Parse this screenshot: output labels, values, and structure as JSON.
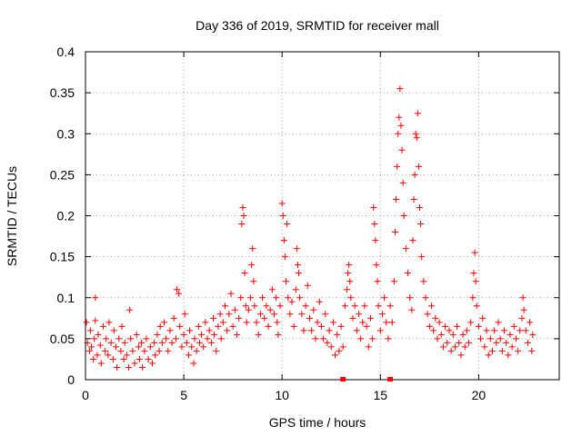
{
  "chart_data": {
    "type": "scatter",
    "title": "Day 336 of 2019, SRMTID for receiver mall",
    "xlabel": "GPS time / hours",
    "ylabel": "SRMTID / TECUs",
    "xlim": [
      0,
      24.1
    ],
    "ylim": [
      0,
      0.4
    ],
    "grid": true,
    "marker": "+",
    "marker_color": "#ff0000",
    "x_ticks": [
      {
        "value": 0,
        "label": "0"
      },
      {
        "value": 5,
        "label": "5"
      },
      {
        "value": 10,
        "label": "10"
      },
      {
        "value": 15,
        "label": "15"
      },
      {
        "value": 20,
        "label": "20"
      }
    ],
    "y_ticks": [
      {
        "value": 0,
        "label": "0"
      },
      {
        "value": 0.05,
        "label": "0.05"
      },
      {
        "value": 0.1,
        "label": "0.1"
      },
      {
        "value": 0.15,
        "label": "0.15"
      },
      {
        "value": 0.2,
        "label": "0.2"
      },
      {
        "value": 0.25,
        "label": "0.25"
      },
      {
        "value": 0.3,
        "label": "0.3"
      },
      {
        "value": 0.35,
        "label": "0.35"
      },
      {
        "value": 0.4,
        "label": "0.4"
      }
    ],
    "gap_markers_x": [
      13.1,
      15.5
    ],
    "series": [
      {
        "name": "SRMTID",
        "points": [
          [
            0.05,
            0.07
          ],
          [
            0.1,
            0.045
          ],
          [
            0.2,
            0.035
          ],
          [
            0.25,
            0.06
          ],
          [
            0.3,
            0.04
          ],
          [
            0.4,
            0.025
          ],
          [
            0.45,
            0.05
          ],
          [
            0.5,
            0.072
          ],
          [
            0.5,
            0.1
          ],
          [
            0.6,
            0.03
          ],
          [
            0.65,
            0.055
          ],
          [
            0.75,
            0.042
          ],
          [
            0.8,
            0.02
          ],
          [
            0.9,
            0.065
          ],
          [
            1.0,
            0.035
          ],
          [
            1.05,
            0.05
          ],
          [
            1.15,
            0.03
          ],
          [
            1.2,
            0.07
          ],
          [
            1.3,
            0.045
          ],
          [
            1.4,
            0.025
          ],
          [
            1.45,
            0.06
          ],
          [
            1.55,
            0.04
          ],
          [
            1.6,
            0.015
          ],
          [
            1.7,
            0.05
          ],
          [
            1.8,
            0.035
          ],
          [
            1.85,
            0.065
          ],
          [
            1.95,
            0.025
          ],
          [
            2.0,
            0.045
          ],
          [
            2.1,
            0.03
          ],
          [
            2.2,
            0.015
          ],
          [
            2.25,
            0.085
          ],
          [
            2.3,
            0.05
          ],
          [
            2.4,
            0.035
          ],
          [
            2.5,
            0.02
          ],
          [
            2.6,
            0.055
          ],
          [
            2.7,
            0.04
          ],
          [
            2.75,
            0.025
          ],
          [
            2.85,
            0.045
          ],
          [
            2.9,
            0.015
          ],
          [
            3.0,
            0.035
          ],
          [
            3.1,
            0.05
          ],
          [
            3.2,
            0.025
          ],
          [
            3.3,
            0.04
          ],
          [
            3.4,
            0.02
          ],
          [
            3.5,
            0.045
          ],
          [
            3.55,
            0.03
          ],
          [
            3.65,
            0.055
          ],
          [
            3.75,
            0.035
          ],
          [
            3.8,
            0.065
          ],
          [
            3.9,
            0.045
          ],
          [
            4.0,
            0.07
          ],
          [
            4.1,
            0.05
          ],
          [
            4.2,
            0.035
          ],
          [
            4.3,
            0.06
          ],
          [
            4.4,
            0.045
          ],
          [
            4.5,
            0.075
          ],
          [
            4.6,
            0.05
          ],
          [
            4.65,
            0.11
          ],
          [
            4.75,
            0.105
          ],
          [
            4.8,
            0.065
          ],
          [
            4.9,
            0.04
          ],
          [
            5.0,
            0.055
          ],
          [
            5.05,
            0.08
          ],
          [
            5.15,
            0.045
          ],
          [
            5.25,
            0.03
          ],
          [
            5.3,
            0.06
          ],
          [
            5.4,
            0.04
          ],
          [
            5.5,
            0.02
          ],
          [
            5.55,
            0.05
          ],
          [
            5.65,
            0.035
          ],
          [
            5.75,
            0.065
          ],
          [
            5.8,
            0.045
          ],
          [
            5.9,
            0.055
          ],
          [
            6.0,
            0.04
          ],
          [
            6.1,
            0.07
          ],
          [
            6.2,
            0.05
          ],
          [
            6.3,
            0.06
          ],
          [
            6.4,
            0.045
          ],
          [
            6.5,
            0.075
          ],
          [
            6.55,
            0.055
          ],
          [
            6.65,
            0.035
          ],
          [
            6.75,
            0.065
          ],
          [
            6.85,
            0.08
          ],
          [
            6.9,
            0.05
          ],
          [
            7.0,
            0.07
          ],
          [
            7.1,
            0.09
          ],
          [
            7.2,
            0.06
          ],
          [
            7.3,
            0.08
          ],
          [
            7.4,
            0.105
          ],
          [
            7.5,
            0.065
          ],
          [
            7.6,
            0.085
          ],
          [
            7.7,
            0.055
          ],
          [
            7.8,
            0.075
          ],
          [
            7.9,
            0.1
          ],
          [
            7.95,
            0.19
          ],
          [
            8.0,
            0.21
          ],
          [
            8.05,
            0.2
          ],
          [
            8.1,
            0.13
          ],
          [
            8.15,
            0.09
          ],
          [
            8.2,
            0.07
          ],
          [
            8.3,
            0.085
          ],
          [
            8.4,
            0.1
          ],
          [
            8.45,
            0.14
          ],
          [
            8.5,
            0.16
          ],
          [
            8.55,
            0.12
          ],
          [
            8.6,
            0.09
          ],
          [
            8.7,
            0.07
          ],
          [
            8.8,
            0.055
          ],
          [
            8.9,
            0.08
          ],
          [
            9.0,
            0.1
          ],
          [
            9.1,
            0.075
          ],
          [
            9.2,
            0.09
          ],
          [
            9.3,
            0.065
          ],
          [
            9.4,
            0.085
          ],
          [
            9.5,
            0.11
          ],
          [
            9.6,
            0.08
          ],
          [
            9.7,
            0.1
          ],
          [
            9.75,
            0.07
          ],
          [
            9.8,
            0.055
          ],
          [
            9.9,
            0.09
          ],
          [
            10.0,
            0.215
          ],
          [
            10.05,
            0.2
          ],
          [
            10.1,
            0.17
          ],
          [
            10.15,
            0.15
          ],
          [
            10.2,
            0.12
          ],
          [
            10.25,
            0.19
          ],
          [
            10.3,
            0.1
          ],
          [
            10.4,
            0.08
          ],
          [
            10.5,
            0.095
          ],
          [
            10.6,
            0.065
          ],
          [
            10.7,
            0.11
          ],
          [
            10.75,
            0.16
          ],
          [
            10.8,
            0.14
          ],
          [
            10.85,
            0.13
          ],
          [
            10.9,
            0.1
          ],
          [
            11.0,
            0.08
          ],
          [
            11.1,
            0.06
          ],
          [
            11.2,
            0.09
          ],
          [
            11.3,
            0.115
          ],
          [
            11.4,
            0.075
          ],
          [
            11.5,
            0.06
          ],
          [
            11.6,
            0.085
          ],
          [
            11.7,
            0.05
          ],
          [
            11.8,
            0.07
          ],
          [
            11.9,
            0.095
          ],
          [
            12.0,
            0.065
          ],
          [
            12.1,
            0.05
          ],
          [
            12.2,
            0.08
          ],
          [
            12.3,
            0.045
          ],
          [
            12.4,
            0.06
          ],
          [
            12.5,
            0.04
          ],
          [
            12.6,
            0.07
          ],
          [
            12.7,
            0.03
          ],
          [
            12.8,
            0.055
          ],
          [
            12.9,
            0.035
          ],
          [
            13.0,
            0.065
          ],
          [
            13.1,
            0.04
          ],
          [
            13.2,
            0.09
          ],
          [
            13.3,
            0.11
          ],
          [
            13.35,
            0.13
          ],
          [
            13.4,
            0.14
          ],
          [
            13.45,
            0.12
          ],
          [
            13.5,
            0.1
          ],
          [
            13.6,
            0.075
          ],
          [
            13.7,
            0.09
          ],
          [
            13.8,
            0.06
          ],
          [
            13.9,
            0.08
          ],
          [
            14.0,
            0.05
          ],
          [
            14.1,
            0.07
          ],
          [
            14.2,
            0.09
          ],
          [
            14.3,
            0.065
          ],
          [
            14.4,
            0.04
          ],
          [
            14.5,
            0.075
          ],
          [
            14.6,
            0.05
          ],
          [
            14.65,
            0.21
          ],
          [
            14.7,
            0.19
          ],
          [
            14.75,
            0.17
          ],
          [
            14.8,
            0.14
          ],
          [
            14.85,
            0.12
          ],
          [
            14.9,
            0.09
          ],
          [
            15.0,
            0.06
          ],
          [
            15.1,
            0.08
          ],
          [
            15.2,
            0.1
          ],
          [
            15.3,
            0.07
          ],
          [
            15.4,
            0.05
          ],
          [
            15.5,
            0.09
          ],
          [
            15.6,
            0.07
          ],
          [
            15.7,
            0.12
          ],
          [
            15.75,
            0.18
          ],
          [
            15.8,
            0.22
          ],
          [
            15.85,
            0.26
          ],
          [
            15.9,
            0.3
          ],
          [
            15.95,
            0.32
          ],
          [
            16.0,
            0.355
          ],
          [
            16.05,
            0.31
          ],
          [
            16.1,
            0.28
          ],
          [
            16.15,
            0.24
          ],
          [
            16.2,
            0.2
          ],
          [
            16.3,
            0.16
          ],
          [
            16.4,
            0.13
          ],
          [
            16.5,
            0.1
          ],
          [
            16.6,
            0.085
          ],
          [
            16.65,
            0.17
          ],
          [
            16.7,
            0.22
          ],
          [
            16.75,
            0.25
          ],
          [
            16.8,
            0.3
          ],
          [
            16.85,
            0.295
          ],
          [
            16.9,
            0.325
          ],
          [
            16.95,
            0.26
          ],
          [
            17.0,
            0.21
          ],
          [
            17.05,
            0.19
          ],
          [
            17.1,
            0.15
          ],
          [
            17.2,
            0.12
          ],
          [
            17.3,
            0.1
          ],
          [
            17.4,
            0.08
          ],
          [
            17.5,
            0.065
          ],
          [
            17.6,
            0.09
          ],
          [
            17.7,
            0.06
          ],
          [
            17.8,
            0.075
          ],
          [
            17.9,
            0.05
          ],
          [
            18.0,
            0.07
          ],
          [
            18.1,
            0.055
          ],
          [
            18.2,
            0.04
          ],
          [
            18.3,
            0.065
          ],
          [
            18.4,
            0.045
          ],
          [
            18.5,
            0.06
          ],
          [
            18.6,
            0.035
          ],
          [
            18.7,
            0.055
          ],
          [
            18.8,
            0.04
          ],
          [
            18.9,
            0.065
          ],
          [
            19.0,
            0.045
          ],
          [
            19.1,
            0.03
          ],
          [
            19.2,
            0.055
          ],
          [
            19.3,
            0.04
          ],
          [
            19.4,
            0.06
          ],
          [
            19.5,
            0.045
          ],
          [
            19.6,
            0.07
          ],
          [
            19.7,
            0.1
          ],
          [
            19.75,
            0.13
          ],
          [
            19.8,
            0.155
          ],
          [
            19.85,
            0.12
          ],
          [
            19.9,
            0.09
          ],
          [
            20.0,
            0.065
          ],
          [
            20.1,
            0.05
          ],
          [
            20.2,
            0.075
          ],
          [
            20.3,
            0.04
          ],
          [
            20.4,
            0.06
          ],
          [
            20.5,
            0.03
          ],
          [
            20.6,
            0.05
          ],
          [
            20.7,
            0.035
          ],
          [
            20.8,
            0.06
          ],
          [
            20.9,
            0.045
          ],
          [
            21.0,
            0.07
          ],
          [
            21.1,
            0.05
          ],
          [
            21.2,
            0.035
          ],
          [
            21.3,
            0.06
          ],
          [
            21.4,
            0.045
          ],
          [
            21.5,
            0.03
          ],
          [
            21.6,
            0.055
          ],
          [
            21.7,
            0.04
          ],
          [
            21.8,
            0.065
          ],
          [
            21.9,
            0.05
          ],
          [
            22.0,
            0.035
          ],
          [
            22.1,
            0.06
          ],
          [
            22.2,
            0.075
          ],
          [
            22.25,
            0.1
          ],
          [
            22.3,
            0.085
          ],
          [
            22.4,
            0.06
          ],
          [
            22.5,
            0.045
          ],
          [
            22.6,
            0.07
          ],
          [
            22.7,
            0.035
          ],
          [
            22.75,
            0.055
          ]
        ]
      }
    ]
  }
}
